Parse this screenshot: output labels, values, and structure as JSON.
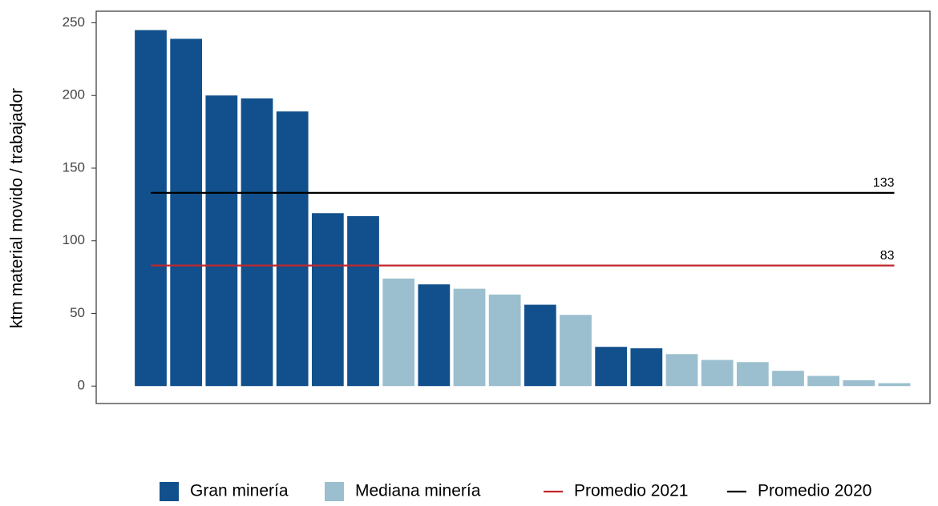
{
  "chart_data": {
    "type": "bar",
    "y_label": "ktm material movido / trabajador",
    "categories": [
      null,
      null,
      null,
      null,
      null,
      null,
      null,
      null,
      null,
      null,
      null,
      null,
      null,
      null,
      null,
      null,
      null,
      null,
      null,
      null,
      null,
      null
    ],
    "series": [
      {
        "name": "Gran minería",
        "color": "#11508c",
        "values": [
          245,
          239,
          200,
          198,
          189,
          119,
          117,
          null,
          70,
          null,
          null,
          56,
          null,
          27,
          26,
          null,
          null,
          null,
          null,
          null,
          null,
          null
        ]
      },
      {
        "name": "Mediana minería",
        "color": "#9bbfce",
        "values": [
          null,
          null,
          null,
          null,
          null,
          null,
          null,
          74,
          null,
          67,
          63,
          null,
          49,
          null,
          null,
          22,
          18,
          16.5,
          10.5,
          7,
          4,
          2
        ]
      }
    ],
    "lines": [
      {
        "name": "Promedio 2021",
        "color": "#c1272d",
        "value": 83
      },
      {
        "name": "Promedio 2020",
        "color": "#000000",
        "value": 133
      }
    ],
    "ylim": [
      -12,
      258
    ],
    "yticks": [
      0,
      50,
      100,
      150,
      200,
      250
    ],
    "grid": false
  }
}
